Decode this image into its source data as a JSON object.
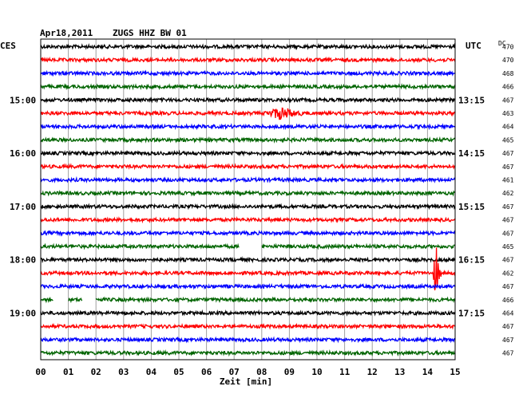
{
  "chart_data": {
    "type": "line",
    "header_date": "Apr18,2011",
    "header_station": "ZUGS HHZ BW 01",
    "left_timezone": "CES",
    "right_timezone": "UTC",
    "dc_label": "DC",
    "xlabel": "Zeit [min]",
    "xlim": [
      0,
      15
    ],
    "x_ticks": [
      "00",
      "01",
      "02",
      "03",
      "04",
      "05",
      "06",
      "07",
      "08",
      "09",
      "10",
      "11",
      "12",
      "13",
      "14",
      "15"
    ],
    "trace_colors": [
      "#000000",
      "#ff0000",
      "#0000ff",
      "#006400"
    ],
    "left_hour_labels": [
      {
        "trace": 4,
        "label": "15:00"
      },
      {
        "trace": 8,
        "label": "16:00"
      },
      {
        "trace": 12,
        "label": "17:00"
      },
      {
        "trace": 16,
        "label": "18:00"
      },
      {
        "trace": 20,
        "label": "19:00"
      }
    ],
    "right_time_labels": [
      {
        "trace": 4,
        "label": "13:15"
      },
      {
        "trace": 8,
        "label": "14:15"
      },
      {
        "trace": 12,
        "label": "15:15"
      },
      {
        "trace": 16,
        "label": "16:15"
      },
      {
        "trace": 20,
        "label": "17:15"
      }
    ],
    "dc_values": [
      "470",
      "470",
      "468",
      "466",
      "467",
      "463",
      "464",
      "465",
      "467",
      "467",
      "461",
      "462",
      "467",
      "467",
      "467",
      "465",
      "467",
      "462",
      "467",
      "466",
      "464",
      "467",
      "467",
      "467"
    ],
    "events": [
      {
        "trace": 5,
        "start_min": 7.9,
        "end_min": 10.6,
        "amplitude": 9
      },
      {
        "trace": 17,
        "start_min": 14.2,
        "end_min": 14.55,
        "amplitude": 42
      }
    ],
    "gaps": [
      {
        "trace": 15,
        "start_min": 7.2,
        "end_min": 8.0
      },
      {
        "trace": 19,
        "start_min": 0.45,
        "end_min": 1.0
      },
      {
        "trace": 19,
        "start_min": 1.5,
        "end_min": 2.0
      }
    ]
  }
}
